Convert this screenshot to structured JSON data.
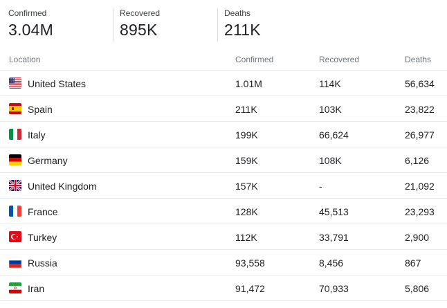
{
  "summary": {
    "confirmed": {
      "label": "Confirmed",
      "value": "3.04M"
    },
    "recovered": {
      "label": "Recovered",
      "value": "895K"
    },
    "deaths": {
      "label": "Deaths",
      "value": "211K"
    }
  },
  "table": {
    "headers": {
      "location": "Location",
      "confirmed": "Confirmed",
      "recovered": "Recovered",
      "deaths": "Deaths"
    },
    "rows": [
      {
        "flag": "us-flag-icon",
        "location": "United States",
        "confirmed": "1.01M",
        "recovered": "114K",
        "deaths": "56,634"
      },
      {
        "flag": "spain-flag-icon",
        "location": "Spain",
        "confirmed": "211K",
        "recovered": "103K",
        "deaths": "23,822"
      },
      {
        "flag": "italy-flag-icon",
        "location": "Italy",
        "confirmed": "199K",
        "recovered": "66,624",
        "deaths": "26,977"
      },
      {
        "flag": "germany-flag-icon",
        "location": "Germany",
        "confirmed": "159K",
        "recovered": "108K",
        "deaths": "6,126"
      },
      {
        "flag": "uk-flag-icon",
        "location": "United Kingdom",
        "confirmed": "157K",
        "recovered": "-",
        "deaths": "21,092"
      },
      {
        "flag": "france-flag-icon",
        "location": "France",
        "confirmed": "128K",
        "recovered": "45,513",
        "deaths": "23,293"
      },
      {
        "flag": "turkey-flag-icon",
        "location": "Turkey",
        "confirmed": "112K",
        "recovered": "33,791",
        "deaths": "2,900"
      },
      {
        "flag": "russia-flag-icon",
        "location": "Russia",
        "confirmed": "93,558",
        "recovered": "8,456",
        "deaths": "867"
      },
      {
        "flag": "iran-flag-icon",
        "location": "Iran",
        "confirmed": "91,472",
        "recovered": "70,933",
        "deaths": "5,806"
      }
    ]
  }
}
